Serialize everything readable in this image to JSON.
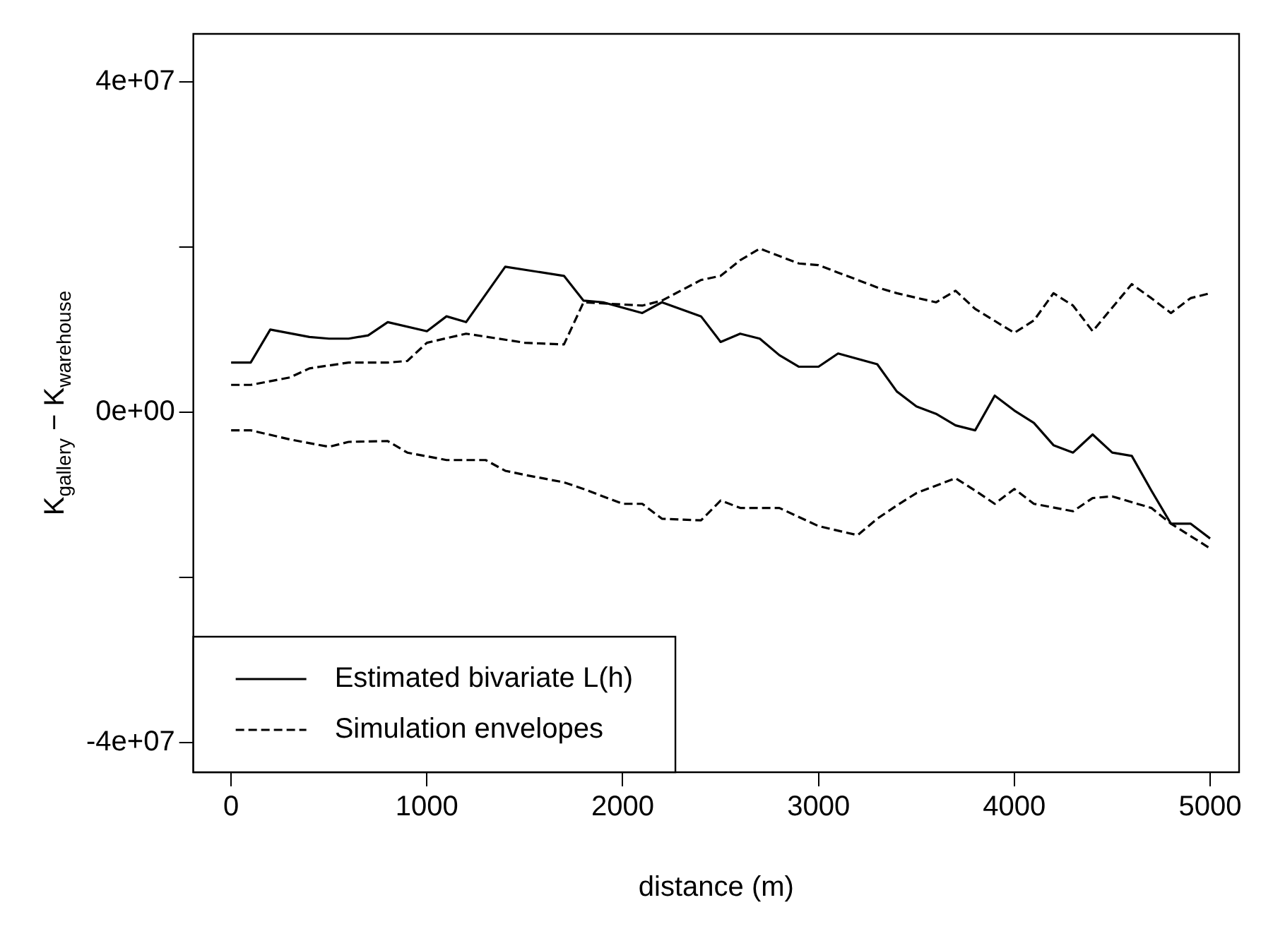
{
  "chart_data": {
    "type": "line",
    "xlabel": "distance (m)",
    "ylabel": "K$_{gallery}$ − K$_{warehouse}$",
    "xlim": [
      -193,
      5148
    ],
    "ylim": [
      -43600000,
      45800000
    ],
    "xticks": [
      0,
      1000,
      2000,
      3000,
      4000,
      5000
    ],
    "yticks": [
      {
        "value": 40000000,
        "label": "4e+07"
      },
      {
        "value": 20000000,
        "label": null
      },
      {
        "value": 0,
        "label": "0e+00"
      },
      {
        "value": -20000000,
        "label": null
      },
      {
        "value": -40000000,
        "label": "-4e+07"
      }
    ],
    "grid": false,
    "legend": "bottom left",
    "marker": "none",
    "series": [
      {
        "name": "Estimated bivariate L(h)",
        "color": "#000000",
        "line_style": "solid",
        "x": [
          0,
          100,
          200,
          400,
          500,
          600,
          700,
          800,
          1000,
          1100,
          1200,
          1400,
          1700,
          1800,
          1900,
          2100,
          2200,
          2400,
          2500,
          2600,
          2700,
          2800,
          2900,
          3000,
          3100,
          3300,
          3400,
          3500,
          3600,
          3700,
          3800,
          3900,
          4000,
          4100,
          4200,
          4300,
          4400,
          4500,
          4600,
          4700,
          4800,
          4900,
          5000
        ],
        "values": [
          6000000,
          6000000,
          10000000,
          9100000,
          8900000,
          8900000,
          9300000,
          10900000,
          9800000,
          11600000,
          10900000,
          17600000,
          16500000,
          13500000,
          13300000,
          12000000,
          13300000,
          11600000,
          8500000,
          9500000,
          8900000,
          6900000,
          5500000,
          5500000,
          7100000,
          5800000,
          2500000,
          700000,
          -200000,
          -1600000,
          -2200000,
          2000000,
          200000,
          -1300000,
          -4000000,
          -4900000,
          -2700000,
          -4900000,
          -5300000,
          -9500000,
          -13500000,
          -13500000,
          -15300000
        ]
      },
      {
        "name": "Simulation envelopes",
        "color": "#000000",
        "line_style": "dashed",
        "x": [
          0,
          100,
          300,
          400,
          600,
          800,
          900,
          1000,
          1200,
          1500,
          1700,
          1800,
          2100,
          2200,
          2400,
          2500,
          2600,
          2700,
          2900,
          3000,
          3100,
          3300,
          3400,
          3600,
          3700,
          3800,
          4000,
          4100,
          4200,
          4300,
          4400,
          4600,
          4700,
          4800,
          4900,
          5000
        ],
        "values": [
          3300000,
          3300000,
          4200000,
          5300000,
          6000000,
          6000000,
          6200000,
          8400000,
          9500000,
          8400000,
          8200000,
          13300000,
          12900000,
          13500000,
          16000000,
          16500000,
          18400000,
          19800000,
          18000000,
          17800000,
          16900000,
          15100000,
          14400000,
          13300000,
          14700000,
          12500000,
          9600000,
          11100000,
          14400000,
          12900000,
          9800000,
          15500000,
          13800000,
          12000000,
          13800000,
          14400000
        ]
      },
      {
        "color": "#000000",
        "line_style": "dashed",
        "x": [
          0,
          100,
          300,
          500,
          600,
          800,
          900,
          1100,
          1300,
          1400,
          1500,
          1700,
          1800,
          2000,
          2100,
          2200,
          2400,
          2500,
          2600,
          2700,
          2800,
          3000,
          3200,
          3300,
          3400,
          3500,
          3700,
          3800,
          3900,
          4000,
          4100,
          4300,
          4400,
          4500,
          4700,
          4800,
          5000
        ],
        "values": [
          -2200000,
          -2200000,
          -3300000,
          -4200000,
          -3600000,
          -3500000,
          -4900000,
          -5800000,
          -5800000,
          -7100000,
          -7600000,
          -8500000,
          -9300000,
          -11100000,
          -11100000,
          -12900000,
          -13100000,
          -10700000,
          -11600000,
          -11600000,
          -11600000,
          -13800000,
          -14900000,
          -12900000,
          -11300000,
          -9800000,
          -8000000,
          -9500000,
          -11100000,
          -9300000,
          -11100000,
          -12000000,
          -10400000,
          -10200000,
          -11600000,
          -13500000,
          -16500000
        ]
      }
    ]
  }
}
